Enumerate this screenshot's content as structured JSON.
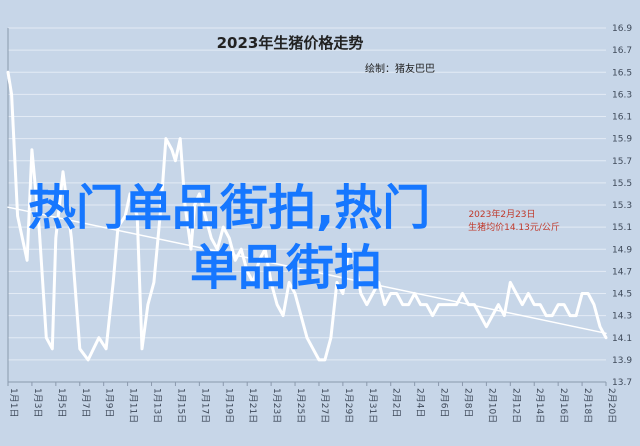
{
  "chart_data": {
    "type": "line",
    "title": "2023年生猪价格走势",
    "subtitle": "绘制：猪友巴巴",
    "ylim": [
      13.7,
      16.9
    ],
    "y_ticks": [
      "16.9",
      "16.7",
      "16.5",
      "16.3",
      "16.1",
      "15.9",
      "15.7",
      "15.5",
      "15.3",
      "15.1",
      "14.9",
      "14.7",
      "14.5",
      "14.3",
      "14.1",
      "13.9",
      "13.7"
    ],
    "x_ticks": [
      "1月1日",
      "1月3日",
      "1月5日",
      "1月7日",
      "1月9日",
      "1月11日",
      "1月13日",
      "1月15日",
      "1月17日",
      "1月19日",
      "1月21日",
      "1月23日",
      "1月25日",
      "1月27日",
      "1月29日",
      "1月31日",
      "2月2日",
      "2月4日",
      "2月6日",
      "2月8日",
      "2月10日",
      "2月12日",
      "2月14日",
      "2月16日",
      "2月18日",
      "2月20日"
    ],
    "series": [
      {
        "color": "#ffffff",
        "x": [
          1,
          1.3,
          1.8,
          2.6,
          3,
          3.6,
          4.2,
          4.7,
          5,
          5.6,
          6.3,
          7,
          7.7,
          8.6,
          9.2,
          9.8,
          10.2,
          10.8,
          11.2,
          11.8,
          12.2,
          12.7,
          13.2,
          13.8,
          14.2,
          14.7,
          15,
          15.4,
          15.8,
          16.3,
          16.6,
          17,
          17.5,
          18,
          18.5,
          19,
          19.5,
          20,
          20.5,
          21,
          21.5,
          22,
          22.5,
          23,
          23.5,
          24,
          24.5,
          25,
          25.5,
          26,
          26.5,
          27,
          27.5,
          28,
          28.5,
          29,
          29.5,
          30,
          30.5,
          31,
          31.5,
          32,
          32.5,
          33,
          33.5,
          34,
          34.5,
          35,
          35.5,
          36,
          36.5,
          37,
          37.5,
          38,
          38.5,
          39,
          39.5,
          40,
          40.5,
          41,
          41.5,
          42,
          42.5,
          43,
          43.5,
          44,
          44.5,
          45,
          45.5,
          46,
          46.5,
          47,
          47.5,
          48,
          48.5,
          49,
          49.5,
          50,
          50.5,
          51
        ],
        "y": [
          16.5,
          16.3,
          15.2,
          14.8,
          15.8,
          15.1,
          14.1,
          14.0,
          15.0,
          15.6,
          15.0,
          14.0,
          13.9,
          14.1,
          14.0,
          14.6,
          15.1,
          15.2,
          15.4,
          15.2,
          14.0,
          14.4,
          14.6,
          15.3,
          15.9,
          15.8,
          15.7,
          15.9,
          15.3,
          14.9,
          15.3,
          15.4,
          15.2,
          15.0,
          14.9,
          15.1,
          15.0,
          14.8,
          14.9,
          14.7,
          14.6,
          14.8,
          14.9,
          14.6,
          14.4,
          14.3,
          14.6,
          14.5,
          14.3,
          14.1,
          14.0,
          13.9,
          13.9,
          14.1,
          14.6,
          14.5,
          14.9,
          14.8,
          14.5,
          14.4,
          14.5,
          14.6,
          14.4,
          14.5,
          14.5,
          14.4,
          14.4,
          14.5,
          14.4,
          14.4,
          14.3,
          14.4,
          14.4,
          14.4,
          14.4,
          14.5,
          14.4,
          14.4,
          14.3,
          14.2,
          14.3,
          14.4,
          14.3,
          14.6,
          14.5,
          14.4,
          14.5,
          14.4,
          14.4,
          14.3,
          14.3,
          14.4,
          14.4,
          14.3,
          14.3,
          14.5,
          14.5,
          14.4,
          14.2,
          14.1
        ]
      },
      {
        "color": "#ffffff",
        "x": [
          1,
          51
        ],
        "y": [
          15.28,
          14.14
        ]
      }
    ],
    "annotation": {
      "text_line1": "2023年2月23日",
      "text_line2": "生猪均价14.13元/公斤",
      "color": "#c0392b"
    },
    "grid": true
  },
  "overlay": {
    "line1": "热门单品街拍,热门",
    "line2": "单品街拍",
    "color": "#1677ff"
  }
}
